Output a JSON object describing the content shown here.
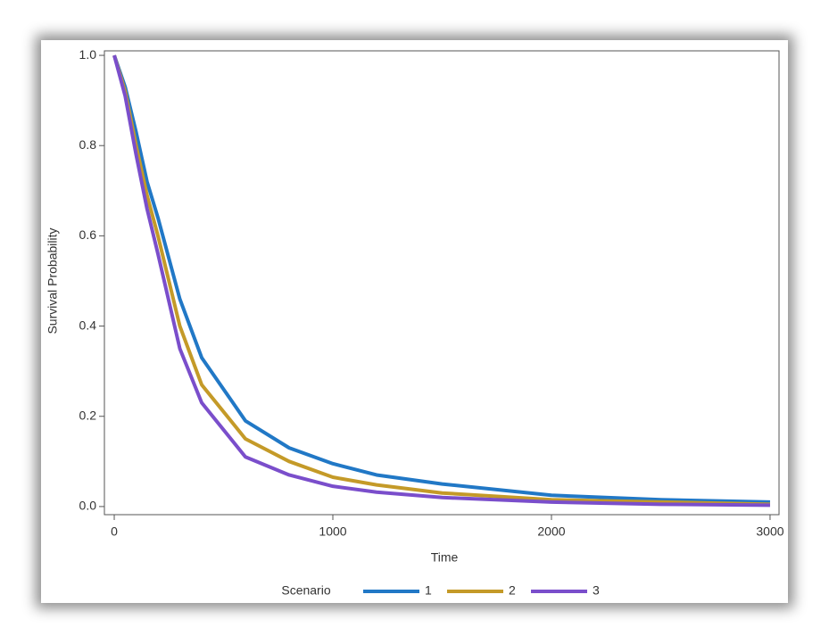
{
  "chart_data": {
    "type": "line",
    "x_label": "Time",
    "y_label": "Survival Probability",
    "legend_title": "Scenario",
    "x": [
      0,
      50,
      100,
      150,
      200,
      300,
      400,
      600,
      800,
      1000,
      1200,
      1500,
      2000,
      2500,
      3000
    ],
    "series": [
      {
        "name": "1",
        "color": "#2178c6",
        "values": [
          1.0,
          0.93,
          0.83,
          0.72,
          0.64,
          0.46,
          0.33,
          0.19,
          0.13,
          0.095,
          0.07,
          0.05,
          0.025,
          0.015,
          0.01
        ]
      },
      {
        "name": "2",
        "color": "#c49a28",
        "values": [
          1.0,
          0.92,
          0.8,
          0.69,
          0.6,
          0.4,
          0.27,
          0.15,
          0.1,
          0.065,
          0.048,
          0.03,
          0.015,
          0.01,
          0.005
        ]
      },
      {
        "name": "3",
        "color": "#7a4ecb",
        "values": [
          1.0,
          0.91,
          0.78,
          0.66,
          0.56,
          0.35,
          0.23,
          0.11,
          0.07,
          0.045,
          0.032,
          0.02,
          0.01,
          0.005,
          0.003
        ]
      }
    ],
    "xlim": [
      -45,
      3041
    ],
    "ylim": [
      -0.018,
      1.01
    ],
    "xticks": [
      0,
      1000,
      2000,
      3000
    ],
    "yticks": [
      {
        "value": 0,
        "label": "0.0"
      },
      0.2,
      0.4,
      0.6,
      0.8,
      {
        "value": 1,
        "label": "1.0"
      }
    ],
    "legend_position": "bottom"
  }
}
